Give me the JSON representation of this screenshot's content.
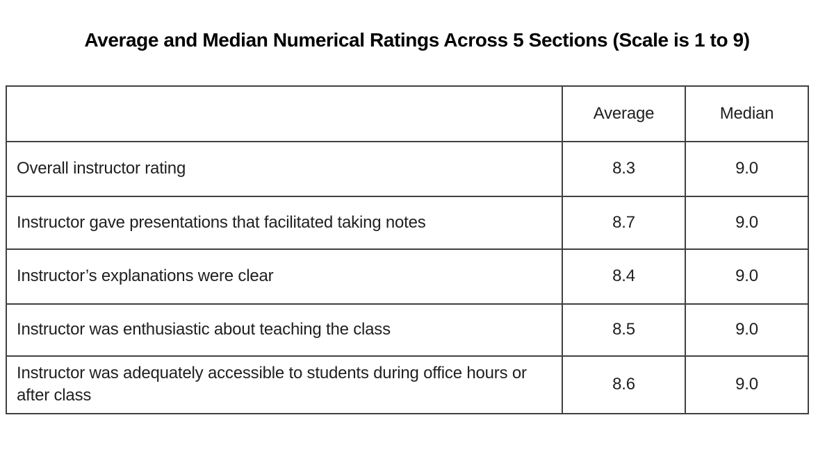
{
  "page": {
    "title": "Average and Median Numerical Ratings Across 5 Sections (Scale is 1 to 9)"
  },
  "table": {
    "header": {
      "label_column": "",
      "average": "Average",
      "median": "Median"
    },
    "rows": [
      {
        "label": "Overall instructor rating",
        "average": "8.3",
        "median": "9.0"
      },
      {
        "label": "Instructor gave presentations that facilitated taking notes",
        "average": "8.7",
        "median": "9.0"
      },
      {
        "label": "Instructor’s explanations were clear",
        "average": "8.4",
        "median": "9.0"
      },
      {
        "label": "Instructor was enthusiastic about teaching the class",
        "average": "8.5",
        "median": "9.0"
      },
      {
        "label": "Instructor was adequately accessible to students during office hours or after class",
        "average": "8.6",
        "median": "9.0"
      }
    ]
  },
  "chart_data": {
    "type": "table",
    "title": "Average and Median Numerical Ratings Across 5 Sections (Scale is 1 to 9)",
    "scale_min": 1,
    "scale_max": 9,
    "columns": [
      "Average",
      "Median"
    ],
    "categories": [
      "Overall instructor rating",
      "Instructor gave presentations that facilitated taking notes",
      "Instructor’s explanations were clear",
      "Instructor was enthusiastic about teaching the class",
      "Instructor was adequately accessible to students during office hours or after class"
    ],
    "series": [
      {
        "name": "Average",
        "values": [
          8.3,
          8.7,
          8.4,
          8.5,
          8.6
        ]
      },
      {
        "name": "Median",
        "values": [
          9.0,
          9.0,
          9.0,
          9.0,
          9.0
        ]
      }
    ]
  },
  "colors": {
    "background": "#ffffff",
    "border": "#404040",
    "text": "#1f1f1f",
    "title": "#000000"
  }
}
